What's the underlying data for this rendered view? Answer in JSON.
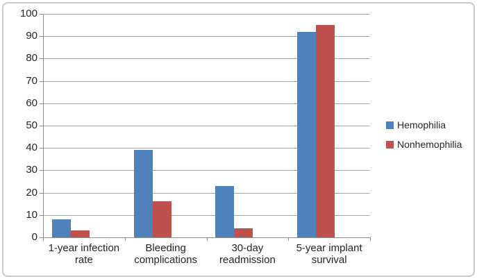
{
  "chart_data": {
    "type": "bar",
    "title": "",
    "xlabel": "",
    "ylabel": "",
    "categories": [
      "1-year infection rate",
      "Bleeding complications",
      "30-day readmission",
      "5-year implant survival"
    ],
    "category_label_lines": [
      [
        "1-year infection",
        "rate"
      ],
      [
        "Bleeding",
        "complications"
      ],
      [
        "30-day",
        "readmission"
      ],
      [
        "5-year implant",
        "survival"
      ]
    ],
    "series": [
      {
        "name": "Hemophilia",
        "color": "#4F81BD",
        "values": [
          8,
          39,
          23,
          92
        ]
      },
      {
        "name": "Nonhemophilia",
        "color": "#C0504D",
        "values": [
          3,
          16,
          4,
          95
        ]
      }
    ],
    "ylim": [
      0,
      100
    ],
    "ytick_step": 10,
    "yticks": [
      0,
      10,
      20,
      30,
      40,
      50,
      60,
      70,
      80,
      90,
      100
    ],
    "grid": true,
    "legend_position": "right"
  },
  "colors": {
    "bar_blue": "#4F81BD",
    "bar_red": "#C0504D",
    "gridline": "#a6a6a6",
    "axis": "#8e8e8e",
    "text": "#262626",
    "frame_border": "#c9c9c9",
    "background": "#ffffff"
  },
  "legend": {
    "items": [
      {
        "label": "Hemophilia"
      },
      {
        "label": "Nonhemophilia"
      }
    ]
  }
}
